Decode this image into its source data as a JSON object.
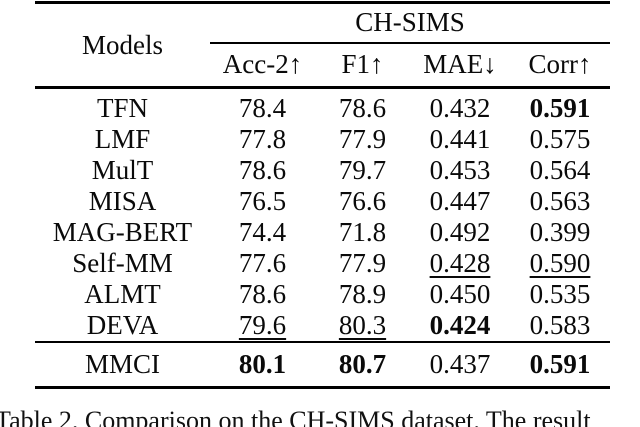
{
  "table": {
    "models_header": "Models",
    "col_group_label": "CH-SIMS",
    "columns": [
      "Acc-2↑",
      "F1↑",
      "MAE↓",
      "Corr↑"
    ],
    "rows": [
      {
        "model": "TFN",
        "cells": [
          {
            "v": "78.4"
          },
          {
            "v": "78.6"
          },
          {
            "v": "0.432"
          },
          {
            "v": "0.591",
            "s": "b"
          }
        ]
      },
      {
        "model": "LMF",
        "cells": [
          {
            "v": "77.8"
          },
          {
            "v": "77.9"
          },
          {
            "v": "0.441"
          },
          {
            "v": "0.575"
          }
        ]
      },
      {
        "model": "MulT",
        "cells": [
          {
            "v": "78.6"
          },
          {
            "v": "79.7"
          },
          {
            "v": "0.453"
          },
          {
            "v": "0.564"
          }
        ]
      },
      {
        "model": "MISA",
        "cells": [
          {
            "v": "76.5"
          },
          {
            "v": "76.6"
          },
          {
            "v": "0.447"
          },
          {
            "v": "0.563"
          }
        ]
      },
      {
        "model": "MAG-BERT",
        "cells": [
          {
            "v": "74.4"
          },
          {
            "v": "71.8"
          },
          {
            "v": "0.492"
          },
          {
            "v": "0.399"
          }
        ]
      },
      {
        "model": "Self-MM",
        "cells": [
          {
            "v": "77.6"
          },
          {
            "v": "77.9"
          },
          {
            "v": "0.428",
            "s": "u"
          },
          {
            "v": "0.590",
            "s": "u"
          }
        ]
      },
      {
        "model": "ALMT",
        "cells": [
          {
            "v": "78.6"
          },
          {
            "v": "78.9"
          },
          {
            "v": "0.450"
          },
          {
            "v": "0.535"
          }
        ]
      },
      {
        "model": "DEVA",
        "cells": [
          {
            "v": "79.6",
            "s": "u"
          },
          {
            "v": "80.3",
            "s": "u"
          },
          {
            "v": "0.424",
            "s": "b"
          },
          {
            "v": "0.583"
          }
        ]
      }
    ],
    "highlight_row": {
      "model": "MMCI",
      "cells": [
        {
          "v": "80.1",
          "s": "b"
        },
        {
          "v": "80.7",
          "s": "b"
        },
        {
          "v": "0.437"
        },
        {
          "v": "0.591",
          "s": "b"
        }
      ]
    }
  },
  "caption": "Table 2. Comparison on the CH-SIMS dataset. The result"
}
